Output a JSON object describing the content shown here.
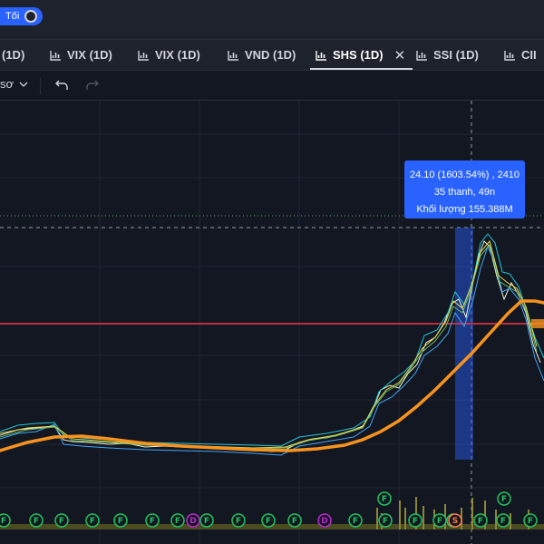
{
  "header": {
    "theme_label": "Tối"
  },
  "tabs": [
    {
      "label": "(1D)"
    },
    {
      "label": "VIX (1D)"
    },
    {
      "label": "VIX (1D)"
    },
    {
      "label": "VND (1D)"
    },
    {
      "label": "SHS (1D)",
      "active": true
    },
    {
      "label": "SSI (1D)"
    },
    {
      "label": "CII"
    }
  ],
  "toolbar": {
    "chart_type_label": "sơ"
  },
  "tooltip": {
    "line1": "24.10 (1603.54%) , 2410",
    "line2": "35 thanh, 49n",
    "line3": "Khối lượng 155.388M"
  },
  "markers": [
    {
      "label": "F",
      "kind": "F"
    },
    {
      "label": "F",
      "kind": "F"
    },
    {
      "label": "F",
      "kind": "F"
    },
    {
      "label": "F",
      "kind": "F"
    },
    {
      "label": "F",
      "kind": "F"
    },
    {
      "label": "F",
      "kind": "F"
    },
    {
      "label": "F",
      "kind": "F"
    },
    {
      "label": "D",
      "kind": "D"
    },
    {
      "label": "F",
      "kind": "F"
    },
    {
      "label": "F",
      "kind": "F"
    },
    {
      "label": "F",
      "kind": "F"
    },
    {
      "label": "F",
      "kind": "F"
    },
    {
      "label": "D",
      "kind": "D"
    },
    {
      "label": "F",
      "kind": "F"
    },
    {
      "label": "F",
      "kind": "F"
    },
    {
      "label": "F",
      "kind": "F"
    },
    {
      "label": "F",
      "kind": "F"
    },
    {
      "label": "F",
      "kind": "F"
    },
    {
      "label": "S",
      "kind": "S"
    },
    {
      "label": "F",
      "kind": "F"
    },
    {
      "label": "F",
      "kind": "F"
    },
    {
      "label": "F",
      "kind": "F"
    },
    {
      "label": "F",
      "kind": "F"
    },
    {
      "label": "F",
      "kind": "F"
    }
  ],
  "colors": {
    "background": "#131722",
    "panel": "#1e222d",
    "accent": "#2962ff",
    "moving_average": "#f7931e",
    "horizontal_line": "#f23645",
    "marker_green": "#22c55e",
    "marker_purple": "#c026d3",
    "marker_orange": "#ff7a45"
  }
}
